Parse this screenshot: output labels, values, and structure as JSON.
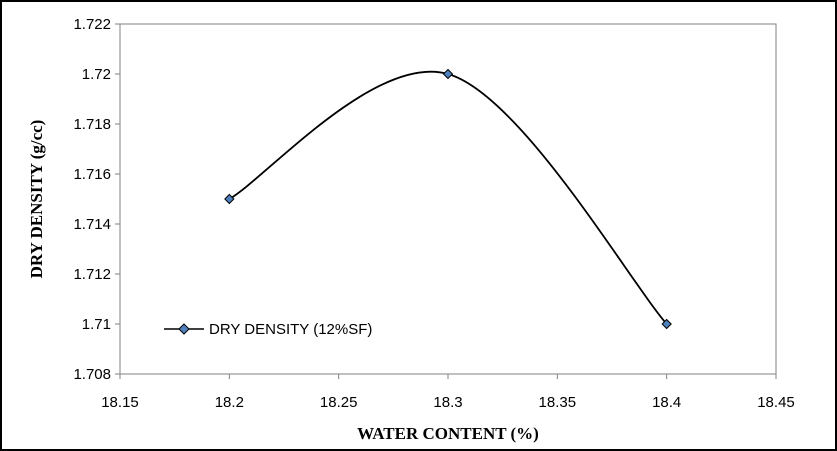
{
  "chart_data": {
    "type": "line",
    "smoothed": true,
    "title": "",
    "xlabel": "WATER CONTENT (%)",
    "ylabel": "DRY DENSITY (g/cc)",
    "xlim": [
      18.15,
      18.45
    ],
    "ylim": [
      1.708,
      1.722
    ],
    "x_ticks": [
      "18.15",
      "18.2",
      "18.25",
      "18.3",
      "18.35",
      "18.4",
      "18.45"
    ],
    "y_ticks": [
      "1.708",
      "1.71",
      "1.712",
      "1.714",
      "1.716",
      "1.718",
      "1.72",
      "1.722"
    ],
    "grid": false,
    "legend_position": "bottom-left",
    "series": [
      {
        "name": "DRY DENSITY (12%SF)",
        "x": [
          18.2,
          18.3,
          18.4
        ],
        "values": [
          1.715,
          1.72,
          1.71
        ],
        "color": "#000000",
        "marker": "diamond",
        "marker_fill": "#4f81bd"
      }
    ]
  }
}
